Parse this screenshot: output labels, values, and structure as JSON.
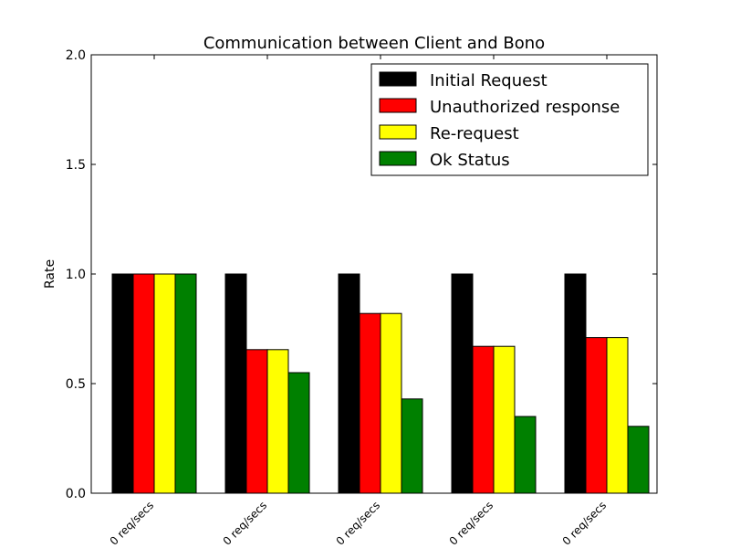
{
  "chart_data": {
    "type": "bar",
    "title": "Communication between Client and Bono",
    "xlabel": "",
    "ylabel": "Rate",
    "ylim": [
      0,
      2.0
    ],
    "yticks": [
      {
        "value": 0.0,
        "label": "0.0"
      },
      {
        "value": 0.5,
        "label": "0.5"
      },
      {
        "value": 1.0,
        "label": "1.0"
      },
      {
        "value": 1.5,
        "label": "1.5"
      },
      {
        "value": 2.0,
        "label": "2.0"
      }
    ],
    "grid": false,
    "legend_position": "top-right",
    "categories": [
      "0 req/secs",
      "0 req/secs",
      "0 req/secs",
      "0 req/secs",
      "0 req/secs"
    ],
    "series": [
      {
        "name": "Initial Request",
        "color": "#000000",
        "values": [
          1.0,
          1.0,
          1.0,
          1.0,
          1.0
        ]
      },
      {
        "name": "Unauthorized response",
        "color": "#ff0000",
        "values": [
          1.0,
          0.655,
          0.82,
          0.67,
          0.71
        ]
      },
      {
        "name": "Re-request",
        "color": "#ffff00",
        "values": [
          1.0,
          0.655,
          0.82,
          0.67,
          0.71
        ]
      },
      {
        "name": "Ok Status",
        "color": "#008000",
        "values": [
          1.0,
          0.55,
          0.43,
          0.35,
          0.305
        ]
      }
    ]
  }
}
